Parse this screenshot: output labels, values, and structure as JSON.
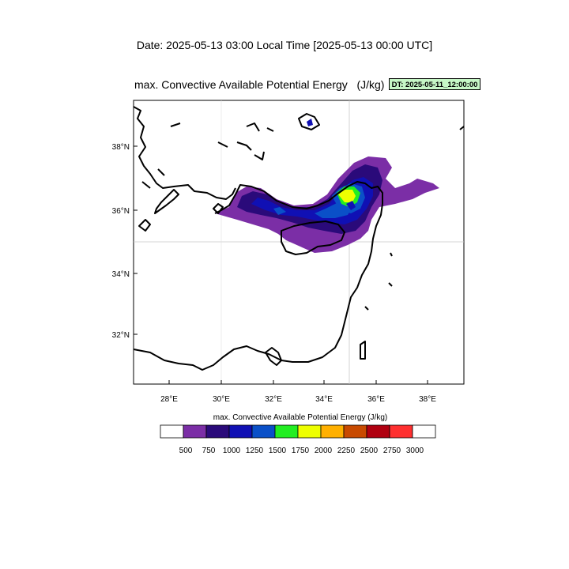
{
  "header": {
    "date_line": "Date: 2025-05-13  03:00 Local Time [2025-05-13  00:00 UTC]",
    "map_title": "max. Convective Available Potential Energy   (J/kg)",
    "dt_badge": "DT: 2025-05-11_12:00:00"
  },
  "map": {
    "variable": "max. Convective Available Potential Energy",
    "units": "J/kg",
    "lon_range": [
      26.6,
      39.4
    ],
    "lat_range": [
      30.4,
      39.4
    ],
    "lat_ticks": [
      "38°N",
      "36°N",
      "34°N",
      "32°N"
    ],
    "lon_ticks": [
      "28°E",
      "30°E",
      "32°E",
      "34°E",
      "36°E",
      "38°E"
    ],
    "grid_lines": {
      "lon": "35°E",
      "lat": "35°N"
    }
  },
  "colorbar": {
    "title": "max. Convective Available Potential Energy  (J/kg)",
    "levels": [
      "500",
      "750",
      "1000",
      "1250",
      "1500",
      "1750",
      "2000",
      "2250",
      "2500",
      "2750",
      "3000"
    ],
    "colors": [
      "#ffffff",
      "#7b2ea6",
      "#2a0a7a",
      "#1010b4",
      "#0a50c8",
      "#22ee22",
      "#eeff00",
      "#ffb000",
      "#c84a00",
      "#b00010",
      "#ff3030",
      "#ffffff"
    ]
  }
}
